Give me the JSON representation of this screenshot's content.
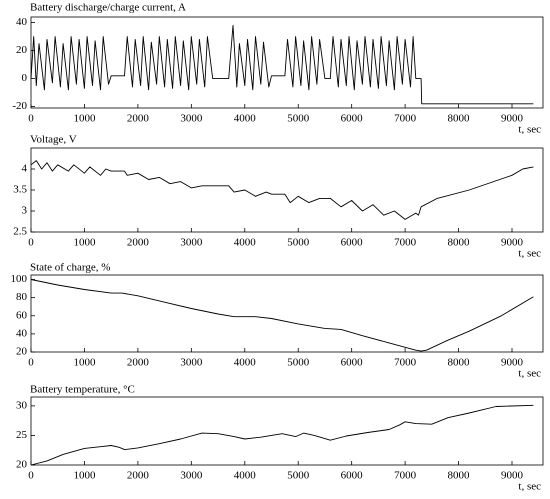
{
  "chart_data": [
    {
      "type": "line",
      "title": "Battery discharge/charge current, A",
      "xlabel": "t, sec",
      "color": "#000000",
      "xlim": [
        0,
        9580
      ],
      "xticks": [
        0,
        1000,
        2000,
        3000,
        4000,
        5000,
        6000,
        7000,
        8000,
        9000
      ],
      "ylim": [
        -21,
        44
      ],
      "yticks": [
        -20,
        0,
        20,
        40
      ],
      "x": [
        0,
        50,
        100,
        150,
        250,
        300,
        400,
        450,
        550,
        600,
        700,
        750,
        850,
        900,
        1000,
        1050,
        1150,
        1200,
        1300,
        1350,
        1450,
        1500,
        1750,
        1800,
        1900,
        1950,
        2050,
        2100,
        2200,
        2250,
        2350,
        2400,
        2500,
        2550,
        2650,
        2700,
        2800,
        2850,
        2950,
        3000,
        3100,
        3150,
        3250,
        3300,
        3400,
        3700,
        3780,
        3850,
        3900,
        4000,
        4050,
        4150,
        4200,
        4300,
        4350,
        4450,
        4500,
        4750,
        4800,
        4900,
        4950,
        5050,
        5100,
        5200,
        5250,
        5350,
        5400,
        5500,
        5600,
        5650,
        5750,
        5800,
        5900,
        5950,
        6050,
        6100,
        6200,
        6250,
        6350,
        6400,
        6500,
        6550,
        6650,
        6700,
        6800,
        6850,
        6950,
        7000,
        7100,
        7150,
        7200,
        7300,
        7310,
        9400
      ],
      "values": [
        0,
        30,
        -5,
        25,
        -8,
        28,
        -3,
        30,
        -6,
        25,
        -8,
        30,
        -4,
        28,
        -7,
        30,
        -5,
        27,
        -8,
        30,
        -4,
        2,
        2,
        30,
        -6,
        28,
        -5,
        30,
        -8,
        26,
        -4,
        30,
        -6,
        28,
        -7,
        30,
        -5,
        27,
        -8,
        30,
        -4,
        28,
        -6,
        30,
        0,
        0,
        38,
        -6,
        25,
        -5,
        28,
        -8,
        30,
        -4,
        26,
        -6,
        2,
        2,
        28,
        -6,
        30,
        -5,
        27,
        -8,
        30,
        -4,
        28,
        0,
        0,
        30,
        -6,
        28,
        -5,
        30,
        -8,
        27,
        -4,
        30,
        -6,
        28,
        -7,
        30,
        -5,
        27,
        -8,
        30,
        -4,
        28,
        -6,
        30,
        0,
        0,
        -18,
        -18
      ]
    },
    {
      "type": "line",
      "title": "Voltage, V",
      "xlabel": "t, sec",
      "color": "#000000",
      "xlim": [
        0,
        9580
      ],
      "xticks": [
        0,
        1000,
        2000,
        3000,
        4000,
        5000,
        6000,
        7000,
        8000,
        9000
      ],
      "ylim": [
        2.5,
        4.5
      ],
      "yticks": [
        2.5,
        3,
        3.5,
        4
      ],
      "x": [
        0,
        100,
        200,
        300,
        400,
        500,
        700,
        800,
        1000,
        1100,
        1300,
        1400,
        1500,
        1750,
        1800,
        2000,
        2200,
        2400,
        2600,
        2800,
        3000,
        3200,
        3400,
        3700,
        3800,
        4000,
        4200,
        4400,
        4500,
        4750,
        4850,
        5000,
        5200,
        5400,
        5500,
        5600,
        5800,
        6000,
        6200,
        6400,
        6600,
        6800,
        7000,
        7200,
        7250,
        7300,
        7600,
        8200,
        9000,
        9200,
        9400
      ],
      "values": [
        4.1,
        4.2,
        4.0,
        4.15,
        3.95,
        4.1,
        3.95,
        4.1,
        3.9,
        4.05,
        3.85,
        4.0,
        3.95,
        3.95,
        3.85,
        3.9,
        3.75,
        3.8,
        3.65,
        3.7,
        3.55,
        3.6,
        3.6,
        3.6,
        3.45,
        3.5,
        3.35,
        3.45,
        3.4,
        3.4,
        3.2,
        3.35,
        3.2,
        3.3,
        3.3,
        3.3,
        3.1,
        3.25,
        3.0,
        3.15,
        2.9,
        3.0,
        2.8,
        2.95,
        2.9,
        3.1,
        3.3,
        3.5,
        3.85,
        4.0,
        4.05
      ]
    },
    {
      "type": "line",
      "title": "State of charge, %",
      "xlabel": "t, sec",
      "color": "#000000",
      "xlim": [
        0,
        9580
      ],
      "xticks": [
        0,
        1000,
        2000,
        3000,
        4000,
        5000,
        6000,
        7000,
        8000,
        9000
      ],
      "ylim": [
        20,
        105
      ],
      "yticks": [
        20,
        40,
        60,
        80,
        100
      ],
      "x": [
        0,
        500,
        1000,
        1500,
        1700,
        2000,
        2500,
        3000,
        3500,
        3800,
        4200,
        4500,
        5000,
        5500,
        5800,
        6200,
        6700,
        7200,
        7300,
        7400,
        7800,
        8200,
        8800,
        9400
      ],
      "values": [
        100,
        94,
        89,
        85,
        85,
        82,
        75,
        68,
        62,
        59,
        59,
        57,
        51,
        46,
        45,
        38,
        30,
        22,
        21,
        22,
        33,
        43,
        60,
        81
      ]
    },
    {
      "type": "line",
      "title": "Battery temperature, °C",
      "xlabel": "t, sec",
      "color": "#000000",
      "xlim": [
        0,
        9580
      ],
      "xticks": [
        0,
        1000,
        2000,
        3000,
        4000,
        5000,
        6000,
        7000,
        8000,
        9000
      ],
      "ylim": [
        20,
        31.5
      ],
      "yticks": [
        20,
        25,
        30
      ],
      "x": [
        0,
        300,
        600,
        1000,
        1300,
        1500,
        1650,
        1750,
        2000,
        2400,
        2800,
        3200,
        3500,
        3800,
        4000,
        4300,
        4700,
        4950,
        5100,
        5300,
        5600,
        5900,
        6300,
        6700,
        6900,
        7000,
        7200,
        7500,
        7800,
        8200,
        8700,
        9400
      ],
      "values": [
        20,
        20.7,
        21.8,
        22.8,
        23.1,
        23.3,
        23,
        22.6,
        22.9,
        23.6,
        24.4,
        25.4,
        25.3,
        24.8,
        24.4,
        24.7,
        25.3,
        24.8,
        25.4,
        25,
        24.2,
        24.9,
        25.5,
        26,
        26.8,
        27.3,
        27,
        26.9,
        28,
        28.8,
        29.9,
        30.1
      ]
    }
  ]
}
